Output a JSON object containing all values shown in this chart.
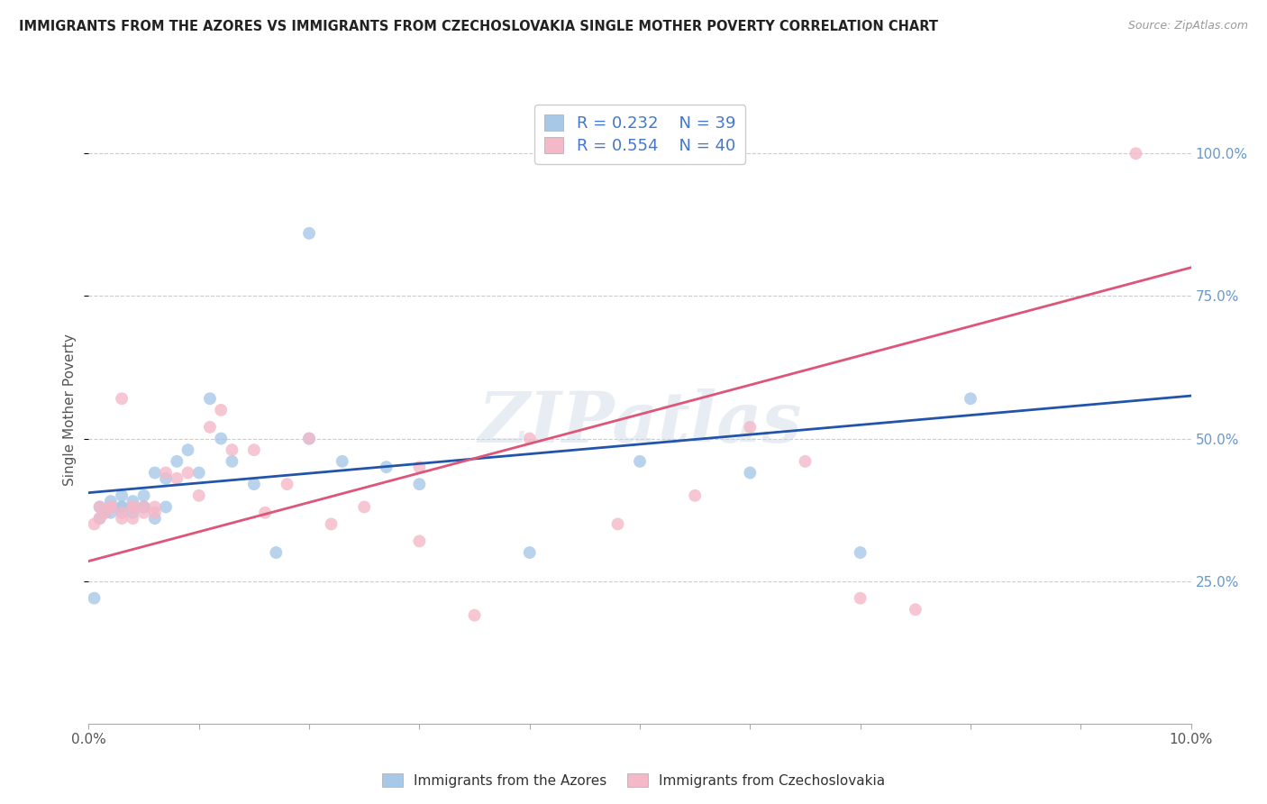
{
  "title": "IMMIGRANTS FROM THE AZORES VS IMMIGRANTS FROM CZECHOSLOVAKIA SINGLE MOTHER POVERTY CORRELATION CHART",
  "source": "Source: ZipAtlas.com",
  "ylabel": "Single Mother Poverty",
  "ytick_labels": [
    "25.0%",
    "50.0%",
    "75.0%",
    "100.0%"
  ],
  "ytick_values": [
    0.25,
    0.5,
    0.75,
    1.0
  ],
  "xlim": [
    0.0,
    0.1
  ],
  "ylim": [
    0.0,
    1.1
  ],
  "legend1_label": "Immigrants from the Azores",
  "legend2_label": "Immigrants from Czechoslovakia",
  "r1": "0.232",
  "n1": "39",
  "r2": "0.554",
  "n2": "40",
  "color_blue": "#a8c8e8",
  "color_pink": "#f4b8c8",
  "line_blue": "#2255aa",
  "line_pink": "#dd5577",
  "blue_x": [
    0.0005,
    0.001,
    0.001,
    0.0015,
    0.002,
    0.002,
    0.002,
    0.003,
    0.003,
    0.003,
    0.003,
    0.004,
    0.004,
    0.004,
    0.005,
    0.005,
    0.005,
    0.006,
    0.006,
    0.007,
    0.007,
    0.008,
    0.009,
    0.01,
    0.011,
    0.012,
    0.013,
    0.015,
    0.017,
    0.02,
    0.023,
    0.027,
    0.03,
    0.04,
    0.05,
    0.06,
    0.07,
    0.08,
    0.02
  ],
  "blue_y": [
    0.22,
    0.36,
    0.38,
    0.37,
    0.38,
    0.39,
    0.37,
    0.37,
    0.38,
    0.4,
    0.38,
    0.37,
    0.38,
    0.39,
    0.38,
    0.38,
    0.4,
    0.44,
    0.36,
    0.43,
    0.38,
    0.46,
    0.48,
    0.44,
    0.57,
    0.5,
    0.46,
    0.42,
    0.3,
    0.5,
    0.46,
    0.45,
    0.42,
    0.3,
    0.46,
    0.44,
    0.3,
    0.57,
    0.86
  ],
  "pink_x": [
    0.0005,
    0.001,
    0.001,
    0.0015,
    0.002,
    0.002,
    0.003,
    0.003,
    0.003,
    0.004,
    0.004,
    0.004,
    0.005,
    0.005,
    0.006,
    0.006,
    0.007,
    0.008,
    0.009,
    0.01,
    0.011,
    0.012,
    0.013,
    0.015,
    0.016,
    0.018,
    0.02,
    0.022,
    0.025,
    0.03,
    0.03,
    0.035,
    0.04,
    0.048,
    0.055,
    0.06,
    0.065,
    0.07,
    0.075,
    0.095
  ],
  "pink_y": [
    0.35,
    0.36,
    0.38,
    0.37,
    0.38,
    0.38,
    0.57,
    0.36,
    0.37,
    0.36,
    0.38,
    0.38,
    0.37,
    0.38,
    0.37,
    0.38,
    0.44,
    0.43,
    0.44,
    0.4,
    0.52,
    0.55,
    0.48,
    0.48,
    0.37,
    0.42,
    0.5,
    0.35,
    0.38,
    0.45,
    0.32,
    0.19,
    0.5,
    0.35,
    0.4,
    0.52,
    0.46,
    0.22,
    0.2,
    1.0
  ],
  "watermark": "ZIPatlas",
  "dot_size": 100
}
